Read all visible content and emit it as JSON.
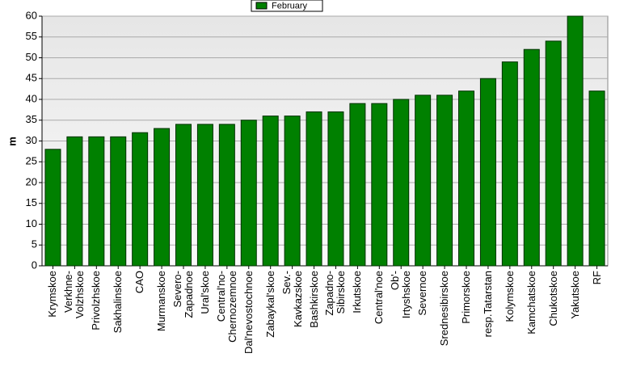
{
  "chart_data": {
    "type": "bar",
    "y_label": "m",
    "categories": [
      "Krymskoe",
      "Verkhne-\nVolzhskoe",
      "Privolzhskoe",
      "Sakhalinskoe",
      "CAO",
      "Murmanskoe",
      "Severo-\nZapadnoe",
      "Ural'skoe",
      "Central'no-\nChernozemnoe",
      "Dal'nevostochnoe",
      "Zabaykal'skoe",
      "Sev.-\nKavkazskoe",
      "Bashkirskoe",
      "Zapadno-\nSibirskoe",
      "Irkutskoe",
      "Central'noe",
      "Ob'-\nIrtyshskoe",
      "Severnoe",
      "Srednesibirskoe",
      "Primorskoe",
      "resp.Tatarstan",
      "Kolymskoe",
      "Kamchatskoe",
      "Chukotskoe",
      "Yakutskoe",
      "RF"
    ],
    "series": [
      {
        "name": "February",
        "color": "#008000",
        "values": [
          28,
          31,
          31,
          31,
          32,
          33,
          34,
          34,
          34,
          35,
          36,
          36,
          37,
          37,
          39,
          39,
          40,
          41,
          41,
          42,
          45,
          49,
          52,
          54,
          60,
          42
        ]
      }
    ],
    "ylim": [
      0,
      60
    ],
    "yticks": [
      0,
      5,
      10,
      15,
      20,
      25,
      30,
      35,
      40,
      45,
      50,
      55,
      60
    ],
    "grid": true
  }
}
